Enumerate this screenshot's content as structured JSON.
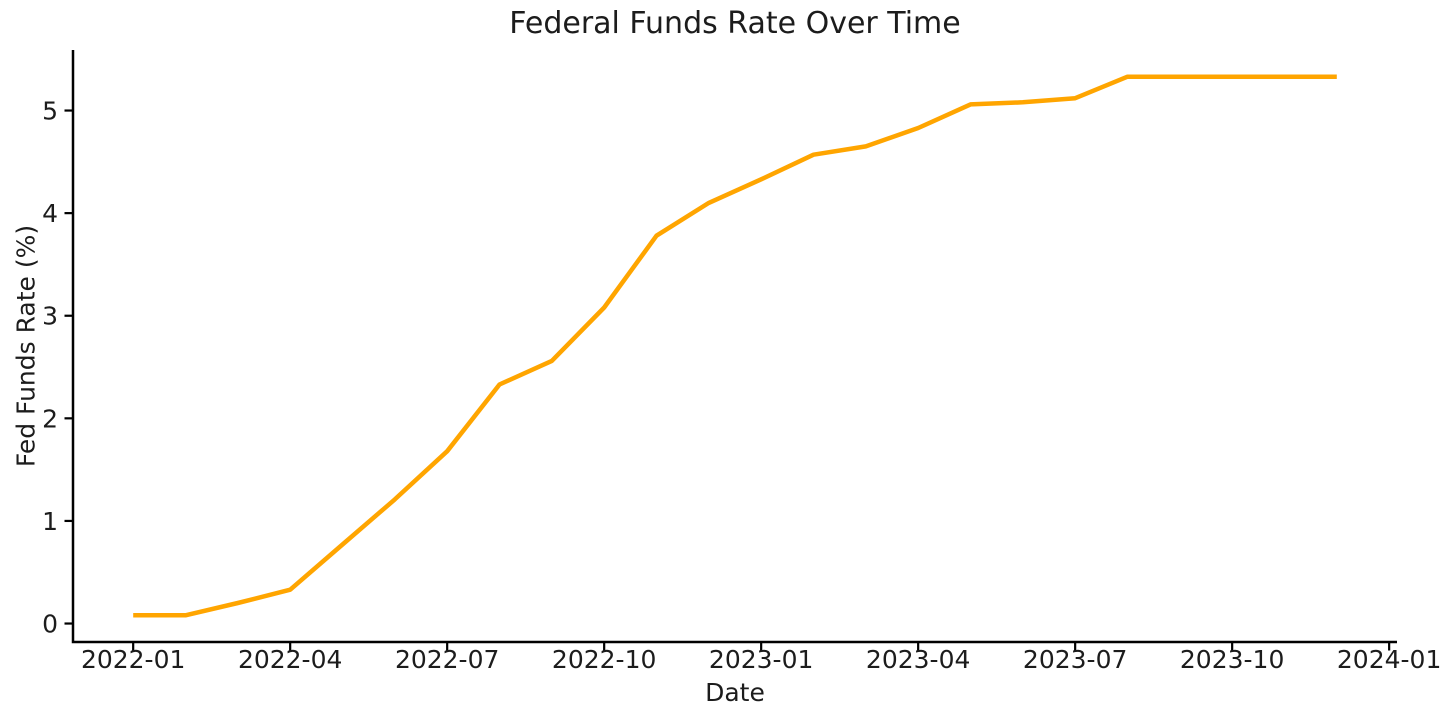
{
  "chart_data": {
    "type": "line",
    "title": "Federal Funds Rate Over Time",
    "xlabel": "Date",
    "ylabel": "Fed Funds Rate (%)",
    "x": [
      "2022-01",
      "2022-02",
      "2022-03",
      "2022-04",
      "2022-05",
      "2022-06",
      "2022-07",
      "2022-08",
      "2022-09",
      "2022-10",
      "2022-11",
      "2022-12",
      "2023-01",
      "2023-02",
      "2023-03",
      "2023-04",
      "2023-05",
      "2023-06",
      "2023-07",
      "2023-08",
      "2023-09",
      "2023-10",
      "2023-11",
      "2023-12"
    ],
    "values": [
      0.08,
      0.08,
      0.2,
      0.33,
      0.77,
      1.21,
      1.68,
      2.33,
      2.56,
      3.08,
      3.78,
      4.1,
      4.33,
      4.57,
      4.65,
      4.83,
      5.06,
      5.08,
      5.12,
      5.33,
      5.33,
      5.33,
      5.33,
      5.33
    ],
    "xtick_labels": [
      "2022-01",
      "2022-04",
      "2022-07",
      "2022-10",
      "2023-01",
      "2023-04",
      "2023-07",
      "2023-10",
      "2024-01"
    ],
    "ytick_values": [
      0,
      1,
      2,
      3,
      4,
      5
    ],
    "ytick_labels": [
      "0",
      "1",
      "2",
      "3",
      "4",
      "5"
    ],
    "xlim_months": [
      -1.15,
      24.15
    ],
    "ylim": [
      -0.18,
      5.59
    ],
    "grid": false,
    "legend": "none",
    "line_color": "#FFA500",
    "line_width": 4.5,
    "axis_color": "#000000",
    "text_color": "#1c1c1c",
    "background": "#ffffff"
  }
}
